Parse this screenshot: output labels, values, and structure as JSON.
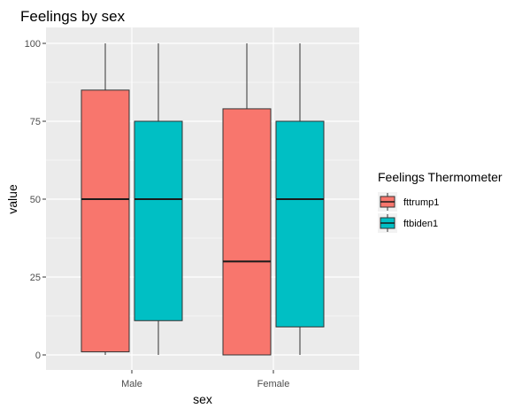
{
  "chart_data": {
    "type": "boxplot",
    "title": "Feelings by sex",
    "xlabel": "sex",
    "ylabel": "value",
    "categories": [
      "Male",
      "Female"
    ],
    "ylim": [
      -5,
      105
    ],
    "yticks": [
      0,
      25,
      50,
      75,
      100
    ],
    "grid": true,
    "legend": {
      "title": "Feelings Thermometer",
      "position": "right"
    },
    "series": [
      {
        "name": "fttrump1",
        "color": "#F8766D",
        "boxes": [
          {
            "min": 0,
            "q1": 1,
            "median": 50,
            "q3": 85,
            "max": 100
          },
          {
            "min": 0,
            "q1": 0,
            "median": 30,
            "q3": 79,
            "max": 100
          }
        ]
      },
      {
        "name": "ftbiden1",
        "color": "#00BFC4",
        "boxes": [
          {
            "min": 0,
            "q1": 11,
            "median": 50,
            "q3": 75,
            "max": 100
          },
          {
            "min": 0,
            "q1": 9,
            "median": 50,
            "q3": 75,
            "max": 100
          }
        ]
      }
    ]
  },
  "colors": {
    "panel_background": "#EBEBEB",
    "grid_major": "#FFFFFF",
    "axis_text": "#4D4D4D",
    "title_text": "#000000"
  }
}
